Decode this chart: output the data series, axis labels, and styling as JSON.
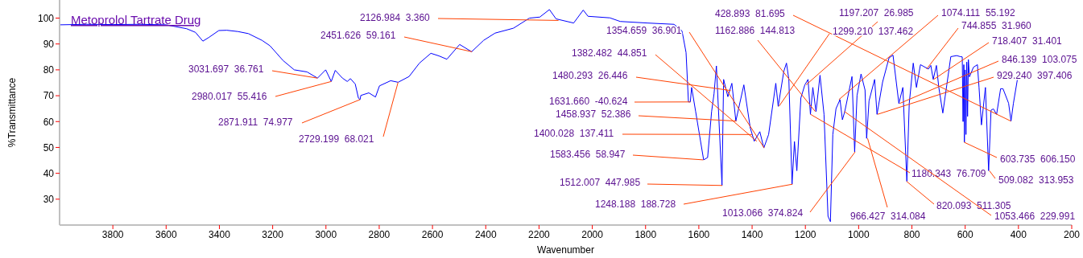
{
  "chart_data": {
    "type": "line",
    "title": "Metoprolol Tartrate Drug",
    "xlabel": "Wavenumber",
    "ylabel": "%Transmittance",
    "xlim": [
      4000,
      200
    ],
    "xticks": [
      3800,
      3600,
      3400,
      3200,
      3000,
      2800,
      2600,
      2400,
      2200,
      2000,
      1800,
      1600,
      1400,
      1200,
      1000,
      800,
      600,
      400,
      200
    ],
    "ylim": [
      20,
      107
    ],
    "yticks": [
      30,
      40,
      50,
      60,
      70,
      80,
      90,
      100
    ],
    "grid": false,
    "legend": false,
    "series": [
      {
        "color": "#0000ff",
        "x": [
          4000,
          3900,
          3800,
          3700,
          3600,
          3523,
          3490,
          3462,
          3440,
          3402,
          3372,
          3330,
          3291,
          3240,
          3210,
          3161,
          3119,
          3071,
          3031.697,
          3001,
          2980,
          2965,
          2938,
          2920,
          2908,
          2890,
          2878,
          2872,
          2869,
          2839,
          2814,
          2799,
          2757,
          2729,
          2688,
          2649,
          2606,
          2576,
          2546,
          2498,
          2453,
          2408,
          2365,
          2296,
          2236,
          2197,
          2161,
          2136,
          2070,
          2034,
          2016,
          1934,
          1895,
          1793,
          1693,
          1663,
          1648,
          1639,
          1632,
          1627,
          1612,
          1582,
          1567,
          1552,
          1543,
          1534,
          1513,
          1507,
          1491,
          1476,
          1461,
          1431,
          1407,
          1392,
          1371,
          1356,
          1338,
          1311,
          1302,
          1281,
          1271,
          1262,
          1250,
          1241,
          1232,
          1217,
          1202,
          1190,
          1181,
          1172,
          1160,
          1145,
          1130,
          1115,
          1106,
          1097,
          1085,
          1070,
          1061,
          1052,
          1025,
          1015,
          1006,
          991,
          976,
          970,
          961,
          940,
          931,
          910,
          886,
          871,
          849,
          834,
          819,
          810,
          795,
          783,
          768,
          738,
          729,
          720,
          708,
          699,
          684,
          669,
          654,
          632,
          618,
          611,
          608,
          605,
          603,
          600,
          597,
          594,
          591,
          588,
          584,
          569,
          554,
          548,
          539,
          524,
          512,
          503,
          494,
          482,
          467,
          458,
          437,
          428,
          419,
          404
        ],
        "values": [
          97.4,
          97.6,
          97.5,
          97.6,
          97.4,
          95.9,
          94.5,
          91.1,
          92.5,
          95.2,
          95.3,
          94.8,
          94.0,
          91.4,
          89.3,
          83.6,
          80.0,
          79.2,
          76.8,
          80.0,
          75.5,
          79.8,
          76.8,
          75.5,
          76.6,
          74.5,
          69.1,
          68.5,
          70.1,
          71.1,
          69.5,
          73.8,
          75.8,
          75.2,
          77.4,
          82.6,
          86.4,
          85.4,
          84.1,
          89.8,
          87.0,
          91.4,
          94.2,
          96.1,
          100.0,
          100.4,
          103.3,
          99.7,
          98.1,
          103.1,
          100.7,
          100.1,
          98.7,
          98.1,
          97.6,
          95.0,
          86.7,
          67.6,
          67.6,
          73.2,
          63.9,
          45.2,
          46.1,
          63.9,
          70.7,
          81.5,
          35.3,
          76.3,
          69.6,
          74.8,
          60.2,
          74.2,
          57.6,
          52.4,
          56.1,
          49.8,
          55.0,
          74.8,
          65.9,
          79.4,
          82.6,
          76.3,
          35.8,
          52.3,
          41.0,
          69.1,
          74.2,
          76.3,
          62.8,
          73.2,
          63.9,
          77.9,
          62.8,
          23.4,
          21.3,
          55.0,
          65.0,
          68.5,
          60.7,
          63.9,
          77.4,
          48.3,
          70.1,
          78.4,
          72.2,
          53.5,
          68.0,
          76.3,
          62.8,
          75.3,
          84.6,
          85.7,
          67.0,
          73.2,
          36.9,
          67.0,
          82.6,
          73.2,
          82.0,
          80.3,
          81.7,
          76.3,
          81.7,
          73.2,
          63.3,
          74.2,
          85.1,
          85.5,
          85.1,
          85,
          60,
          82,
          52,
          80,
          55,
          83,
          62,
          84,
          77.3,
          81.0,
          82.0,
          73.2,
          58.7,
          73.2,
          41.0,
          64.4,
          64.9,
          62.8,
          72.7,
          72.7,
          67.1,
          60.2,
          67.0,
          76.3
        ]
      }
    ],
    "annotations": [
      {
        "text": "3031.697  36.761",
        "x": 3031.697,
        "y": 76.8
      },
      {
        "text": "2980.017  55.416",
        "x": 2980.017,
        "y": 75.5
      },
      {
        "text": "2871.911  74.977",
        "x": 2871.911,
        "y": 68.5
      },
      {
        "text": "2729.199  68.021",
        "x": 2729.199,
        "y": 75.2
      },
      {
        "text": "2126.984  3.360",
        "x": 2126.984,
        "y": 99.1
      },
      {
        "text": "2451.626  59.161",
        "x": 2451.626,
        "y": 87.0
      },
      {
        "text": "1354.659  36.901",
        "x": 1354.659,
        "y": 49.8
      },
      {
        "text": "1382.482  44.851",
        "x": 1382.482,
        "y": 52.4
      },
      {
        "text": "1480.293  26.446",
        "x": 1480.293,
        "y": 72.0
      },
      {
        "text": "1631.660  -40.624",
        "x": 1631.66,
        "y": 67.6
      },
      {
        "text": "1458.937  52.386",
        "x": 1458.937,
        "y": 60.2
      },
      {
        "text": "1400.028  137.411",
        "x": 1400.028,
        "y": 55.0
      },
      {
        "text": "1583.456  58.947",
        "x": 1583.456,
        "y": 45.2
      },
      {
        "text": "1512.007  447.985",
        "x": 1512.007,
        "y": 35.3
      },
      {
        "text": "1248.188  188.728",
        "x": 1248.188,
        "y": 35.8
      },
      {
        "text": "428.893  81.695",
        "x": 428.893,
        "y": 60.2
      },
      {
        "text": "1162.886  144.813",
        "x": 1162.886,
        "y": 63.9
      },
      {
        "text": "1197.207  26.985",
        "x": 1197.207,
        "y": 74.2
      },
      {
        "text": "1299.210  137.462",
        "x": 1299.21,
        "y": 65.9
      },
      {
        "text": "1074.111  55.192",
        "x": 1074.111,
        "y": 68.5
      },
      {
        "text": "744.855  31.960",
        "x": 744.855,
        "y": 80.3
      },
      {
        "text": "718.407  31.401",
        "x": 718.407,
        "y": 76.3
      },
      {
        "text": "846.139  103.075",
        "x": 846.139,
        "y": 67.0
      },
      {
        "text": "929.240  397.406",
        "x": 929.24,
        "y": 62.8
      },
      {
        "text": "603.735  606.150",
        "x": 603.735,
        "y": 52.0
      },
      {
        "text": "509.082  313.953",
        "x": 509.082,
        "y": 41.0
      },
      {
        "text": "1180.343  76.709",
        "x": 1180.343,
        "y": 62.8
      },
      {
        "text": "820.093  511.305",
        "x": 820.093,
        "y": 36.9
      },
      {
        "text": "1053.466  229.991",
        "x": 1053.466,
        "y": 63.9
      },
      {
        "text": "1013.066  374.824",
        "x": 1013.066,
        "y": 48.3
      },
      {
        "text": "966.427  314.084",
        "x": 966.427,
        "y": 53.5
      }
    ]
  }
}
